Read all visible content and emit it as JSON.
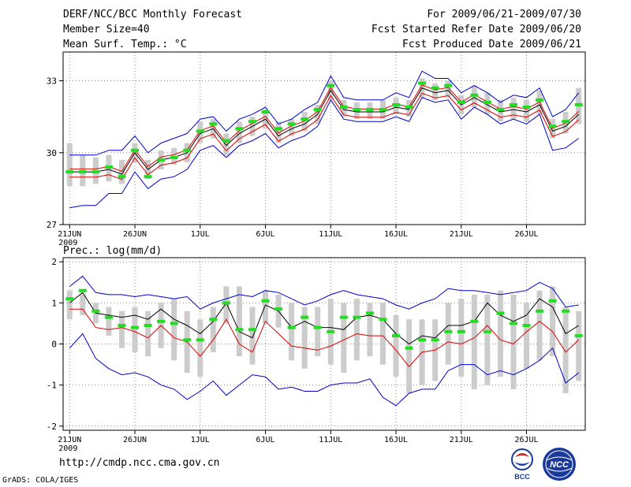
{
  "header": {
    "title": "DERF/NCC/BCC Monthly Forecast",
    "member_size": "Member Size=40",
    "variable": "Mean Surf. Temp.: °C",
    "period": "For 2009/06/21-2009/07/30",
    "refer_date": "Fcst Started Refer Date 2009/06/20",
    "produced_date": "Fcst Produced Date 2009/06/21"
  },
  "footer": {
    "url": "http://cmdp.ncc.cma.gov.cn",
    "grads": "GrADS: COLA/IGES"
  },
  "logos": {
    "bcc": "BCC",
    "ncc": "NCC"
  },
  "colors": {
    "envelope": "#0000cc",
    "mean": "#000000",
    "lower": "#dd0000",
    "green": "#22dd22",
    "box": "#cccccc",
    "grid": "#888888"
  },
  "x_ticks": {
    "labels": [
      "21JUN",
      "26JUN",
      "1JUL",
      "6JUL",
      "11JUL",
      "16JUL",
      "21JUL",
      "26JUL"
    ],
    "index": [
      0,
      5,
      10,
      15,
      20,
      25,
      30,
      35
    ],
    "year": "2009"
  },
  "chart_data": [
    {
      "type": "line",
      "name": "temperature",
      "ylim": [
        27,
        34.2
      ],
      "yticks": [
        27,
        30,
        33
      ],
      "ytick_labels": [
        "27",
        "30",
        "33"
      ],
      "upper": [
        29.9,
        29.9,
        29.9,
        30.1,
        30.1,
        30.7,
        30.0,
        30.4,
        30.6,
        30.8,
        31.4,
        31.5,
        30.9,
        31.4,
        31.6,
        31.9,
        31.2,
        31.4,
        31.8,
        32.1,
        33.2,
        32.3,
        32.2,
        32.2,
        32.2,
        32.5,
        32.3,
        33.4,
        33.1,
        33.1,
        32.5,
        32.8,
        32.5,
        32.1,
        32.4,
        32.3,
        32.7,
        31.5,
        31.8,
        32.5
      ],
      "mean": [
        29.2,
        29.2,
        29.2,
        29.3,
        29.1,
        30.0,
        29.3,
        29.7,
        29.8,
        30.0,
        30.8,
        31.0,
        30.3,
        30.8,
        31.1,
        31.4,
        30.7,
        31.0,
        31.2,
        31.6,
        32.6,
        31.8,
        31.7,
        31.7,
        31.7,
        31.9,
        31.8,
        32.7,
        32.5,
        32.6,
        32.0,
        32.3,
        32.0,
        31.7,
        31.8,
        31.7,
        32.0,
        30.9,
        31.1,
        31.6
      ],
      "lower_outer": [
        27.7,
        27.8,
        27.8,
        28.3,
        28.3,
        29.2,
        28.5,
        28.9,
        29.0,
        29.3,
        30.1,
        30.3,
        29.8,
        30.3,
        30.5,
        30.8,
        30.2,
        30.5,
        30.7,
        31.1,
        32.2,
        31.4,
        31.3,
        31.3,
        31.3,
        31.5,
        31.3,
        32.3,
        32.1,
        32.2,
        31.4,
        31.9,
        31.6,
        31.2,
        31.4,
        31.2,
        31.6,
        30.1,
        30.2,
        30.6
      ],
      "green": [
        29.2,
        29.2,
        29.2,
        29.4,
        29.0,
        30.1,
        29.0,
        29.7,
        29.8,
        30.1,
        30.9,
        31.2,
        30.5,
        31.0,
        31.3,
        31.7,
        31.0,
        31.2,
        31.4,
        31.8,
        32.8,
        31.9,
        31.8,
        31.8,
        31.8,
        32.0,
        31.9,
        32.9,
        32.7,
        32.8,
        32.1,
        32.4,
        32.1,
        31.8,
        32.0,
        31.9,
        32.2,
        31.1,
        31.3,
        32.0
      ],
      "box_low": [
        28.6,
        28.6,
        28.7,
        28.8,
        28.7,
        29.6,
        28.9,
        29.3,
        29.5,
        29.6,
        30.4,
        30.6,
        29.9,
        30.4,
        30.7,
        31.0,
        30.4,
        30.7,
        30.9,
        31.2,
        32.2,
        31.5,
        31.4,
        31.4,
        31.4,
        31.6,
        31.5,
        32.3,
        32.2,
        32.3,
        31.6,
        31.9,
        31.6,
        31.3,
        31.4,
        31.3,
        31.6,
        30.6,
        30.8,
        31.2
      ],
      "box_high": [
        30.4,
        29.9,
        29.8,
        29.9,
        29.7,
        30.4,
        29.7,
        30.1,
        30.2,
        30.4,
        31.3,
        31.4,
        30.8,
        31.3,
        31.5,
        31.8,
        31.3,
        31.4,
        31.7,
        32.0,
        33.0,
        32.2,
        32.1,
        32.1,
        32.2,
        32.3,
        32.2,
        33.1,
        32.9,
        33.0,
        32.4,
        32.8,
        32.5,
        32.2,
        32.3,
        32.2,
        32.6,
        31.4,
        31.7,
        32.7
      ]
    },
    {
      "type": "line",
      "name": "precipitation",
      "title": "Prec.: log(mm/d)",
      "ylim": [
        -2.1,
        2.1
      ],
      "yticks": [
        -2,
        -1,
        0,
        1,
        2
      ],
      "ytick_labels": [
        "-2",
        "-1",
        "0",
        "1",
        "2"
      ],
      "upper": [
        1.4,
        1.65,
        1.25,
        1.2,
        1.2,
        1.15,
        1.2,
        1.15,
        1.1,
        1.15,
        0.85,
        1.0,
        1.1,
        1.2,
        1.15,
        1.3,
        1.25,
        1.1,
        0.95,
        1.05,
        1.2,
        1.3,
        1.2,
        1.15,
        1.1,
        0.95,
        0.85,
        1.0,
        1.1,
        1.35,
        1.3,
        1.3,
        1.25,
        1.2,
        1.25,
        1.3,
        1.5,
        1.35,
        0.9,
        0.95
      ],
      "mean": [
        1.0,
        1.25,
        0.75,
        0.7,
        0.65,
        0.7,
        0.6,
        0.85,
        0.6,
        0.45,
        0.25,
        0.55,
        1.0,
        0.3,
        0.15,
        0.95,
        0.8,
        0.4,
        0.55,
        0.4,
        0.4,
        0.35,
        0.65,
        0.7,
        0.6,
        0.25,
        0.0,
        0.2,
        0.15,
        0.45,
        0.45,
        0.55,
        1.0,
        0.7,
        0.55,
        0.7,
        1.1,
        0.9,
        0.25,
        0.45
      ],
      "lower_outer": [
        -0.1,
        0.25,
        -0.35,
        -0.6,
        -0.75,
        -0.7,
        -0.8,
        -1.0,
        -1.1,
        -1.35,
        -1.15,
        -0.9,
        -1.25,
        -1.0,
        -0.75,
        -0.8,
        -1.1,
        -1.05,
        -1.15,
        -1.15,
        -1.0,
        -0.95,
        -0.95,
        -0.85,
        -1.3,
        -1.5,
        -1.2,
        -1.1,
        -1.1,
        -0.65,
        -0.5,
        -0.5,
        -0.75,
        -0.65,
        -0.75,
        -0.6,
        -0.4,
        -0.1,
        -0.95,
        -0.7
      ],
      "lower_inner": [
        0.85,
        0.85,
        0.4,
        0.35,
        0.4,
        0.3,
        0.15,
        0.45,
        0.15,
        0.05,
        -0.3,
        0.1,
        0.6,
        0.0,
        -0.2,
        0.55,
        0.25,
        -0.05,
        -0.1,
        -0.15,
        -0.05,
        0.1,
        0.25,
        0.2,
        0.2,
        -0.15,
        -0.55,
        -0.2,
        -0.15,
        0.05,
        0.0,
        0.15,
        0.45,
        0.1,
        0.0,
        0.3,
        0.55,
        0.3,
        -0.2,
        0.1
      ],
      "green": [
        1.1,
        1.3,
        0.8,
        0.65,
        0.45,
        0.4,
        0.45,
        0.55,
        0.5,
        0.1,
        0.1,
        0.6,
        1.0,
        0.35,
        0.35,
        1.05,
        0.85,
        0.4,
        0.65,
        0.4,
        0.3,
        0.65,
        0.65,
        0.75,
        0.6,
        0.2,
        -0.1,
        0.1,
        0.1,
        0.3,
        0.3,
        0.55,
        0.3,
        0.75,
        0.5,
        0.45,
        0.8,
        1.05,
        0.8,
        0.2
      ],
      "box_low": [
        0.6,
        0.7,
        0.5,
        0.2,
        -0.1,
        -0.2,
        -0.3,
        -0.1,
        -0.4,
        -0.7,
        -0.8,
        -0.2,
        0.5,
        -0.3,
        -0.5,
        0.5,
        0.4,
        -0.4,
        -0.6,
        -0.3,
        -0.5,
        -0.7,
        -0.4,
        -0.3,
        -0.5,
        -0.8,
        -1.2,
        -1.0,
        -0.9,
        -0.5,
        -0.8,
        -1.1,
        -1.0,
        -0.8,
        -1.1,
        -0.6,
        -0.4,
        -0.3,
        -1.2,
        -0.9
      ],
      "box_high": [
        1.3,
        1.2,
        1.0,
        0.9,
        0.8,
        0.9,
        0.8,
        1.0,
        1.1,
        0.8,
        0.6,
        0.9,
        1.4,
        1.4,
        0.9,
        1.3,
        1.2,
        1.0,
        0.9,
        0.9,
        1.1,
        1.0,
        1.1,
        1.0,
        1.0,
        0.7,
        0.6,
        0.6,
        0.6,
        1.0,
        1.1,
        1.2,
        1.2,
        1.3,
        1.2,
        1.0,
        1.3,
        1.4,
        0.9,
        0.8
      ]
    }
  ]
}
